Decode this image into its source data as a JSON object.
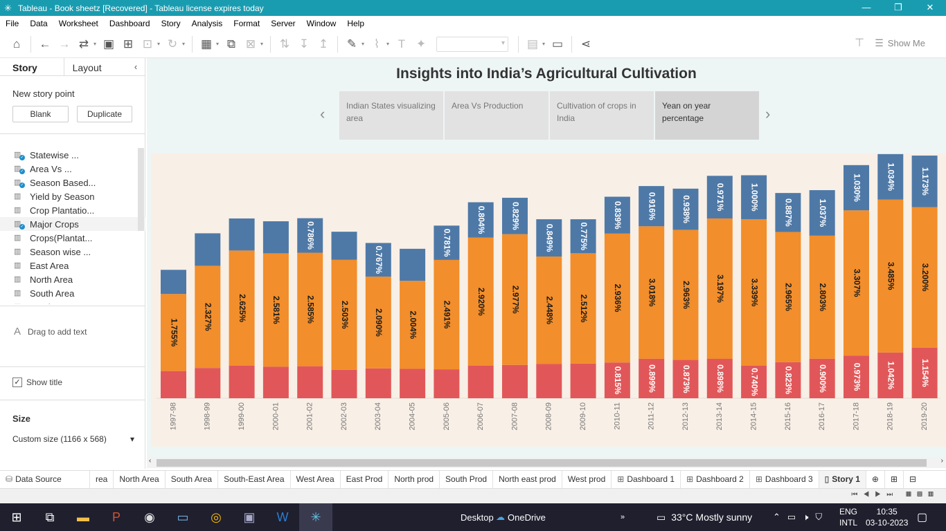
{
  "window": {
    "title": "Tableau - Book sheetz [Recovered] - Tableau license expires today",
    "minimize": "—",
    "restore": "❐",
    "close": "✕"
  },
  "menu": [
    "File",
    "Data",
    "Worksheet",
    "Dashboard",
    "Story",
    "Analysis",
    "Format",
    "Server",
    "Window",
    "Help"
  ],
  "toolbar": {
    "show_me": "Show Me"
  },
  "left_panel": {
    "tab_story": "Story",
    "tab_layout": "Layout",
    "collapse": "‹",
    "new_story_point": "New story point",
    "blank_button": "Blank",
    "duplicate_button": "Duplicate",
    "sheets": [
      {
        "label": "Statewise ...",
        "used": true
      },
      {
        "label": "Area Vs ...",
        "used": true
      },
      {
        "label": "Season Based...",
        "used": true
      },
      {
        "label": "Yield by Season",
        "used": false
      },
      {
        "label": "Crop Plantatio...",
        "used": false
      },
      {
        "label": "Major Crops",
        "used": true
      },
      {
        "label": "Crops(Plantat...",
        "used": false
      },
      {
        "label": "Season wise ...",
        "used": false
      },
      {
        "label": "East Area",
        "used": false
      },
      {
        "label": "North Area",
        "used": false
      },
      {
        "label": "South Area",
        "used": false
      },
      {
        "label": "South-East ...",
        "used": false
      }
    ],
    "drag_to_add_text": "Drag to add text",
    "show_title": "Show title",
    "size_heading": "Size",
    "size_value": "Custom size (1166 x 568)"
  },
  "story": {
    "title": "Insights into India’s Agricultural Cultivation",
    "points": [
      {
        "label": "Indian States visualizing area",
        "active": false
      },
      {
        "label": "Area Vs Production",
        "active": false
      },
      {
        "label": "Cultivation of crops in India",
        "active": false
      },
      {
        "label": "Yean on year percentage",
        "active": true
      }
    ],
    "prev": "‹",
    "next": "›"
  },
  "chart_data": {
    "type": "bar",
    "stacked": true,
    "title": "",
    "xlabel": "",
    "ylabel": "",
    "categories": [
      "1997-98",
      "1998-99",
      "1999-00",
      "2000-01",
      "2001-02",
      "2002-03",
      "2003-04",
      "2004-05",
      "2005-06",
      "2006-07",
      "2007-08",
      "2008-09",
      "2009-10",
      "2010-11",
      "2011-12",
      "2012-13",
      "2013-14",
      "2014-15",
      "2015-16",
      "2016-17",
      "2017-18",
      "2018-19",
      "2019-20"
    ],
    "series": [
      {
        "color": "#e15759",
        "values": [
          0.62,
          0.69,
          0.74,
          0.72,
          0.73,
          0.65,
          0.68,
          0.67,
          0.66,
          0.74,
          0.76,
          0.78,
          0.79,
          0.815,
          0.899,
          0.873,
          0.898,
          0.74,
          0.823,
          0.9,
          0.973,
          1.042,
          1.154
        ],
        "labels": [
          "",
          "",
          "",
          "",
          "",
          "",
          "",
          "",
          "",
          "",
          "",
          "",
          "",
          "0.815%",
          "0.899%",
          "0.873%",
          "0.898%",
          "0.740%",
          "0.823%",
          "0.900%",
          "0.973%",
          "1.042%",
          "1.154%"
        ]
      },
      {
        "color": "#f28e2b",
        "values": [
          1.755,
          2.327,
          2.625,
          2.581,
          2.585,
          2.503,
          2.09,
          2.004,
          2.491,
          2.92,
          2.977,
          2.448,
          2.512,
          2.936,
          3.018,
          2.963,
          3.197,
          3.339,
          2.965,
          2.803,
          3.307,
          3.485,
          3.2
        ],
        "labels": [
          "1.755%",
          "2.327%",
          "2.625%",
          "2.581%",
          "2.585%",
          "2.503%",
          "2.090%",
          "2.004%",
          "2.491%",
          "2.920%",
          "2.977%",
          "2.448%",
          "2.512%",
          "2.936%",
          "3.018%",
          "2.963%",
          "3.197%",
          "3.339%",
          "2.965%",
          "2.803%",
          "3.307%",
          "3.485%",
          "3.200%"
        ]
      },
      {
        "color": "#4e79a7",
        "values": [
          0.55,
          0.74,
          0.73,
          0.73,
          0.786,
          0.64,
          0.767,
          0.73,
          0.781,
          0.804,
          0.829,
          0.849,
          0.775,
          0.839,
          0.916,
          0.938,
          0.971,
          1.0,
          0.887,
          1.037,
          1.03,
          1.034,
          1.173
        ],
        "labels": [
          "",
          "",
          "",
          "",
          "0.786%",
          "",
          "0.767%",
          "",
          "0.781%",
          "0.804%",
          "0.829%",
          "0.849%",
          "0.775%",
          "0.839%",
          "0.916%",
          "0.938%",
          "0.971%",
          "1.000%",
          "0.887%",
          "1.037%",
          "1.030%",
          "1.034%",
          "1.173%"
        ]
      }
    ],
    "grid": false,
    "legend": "none",
    "axes_visible": false
  },
  "sheet_tabs": {
    "data_source": "Data Source",
    "tabs": [
      "rea",
      "North Area",
      "South Area",
      "South-East Area",
      "West Area",
      "East Prod",
      "North prod",
      "South Prod",
      "North east prod",
      "West prod"
    ],
    "dashboards": [
      "Dashboard 1",
      "Dashboard 2",
      "Dashboard 3"
    ],
    "story": "Story 1"
  },
  "taskbar": {
    "desktop": "Desktop",
    "onedrive": "OneDrive",
    "weather": "33°C  Mostly sunny",
    "lang_top": "ENG",
    "lang_bottom": "INTL",
    "time": "10:35",
    "date": "03-10-2023"
  }
}
